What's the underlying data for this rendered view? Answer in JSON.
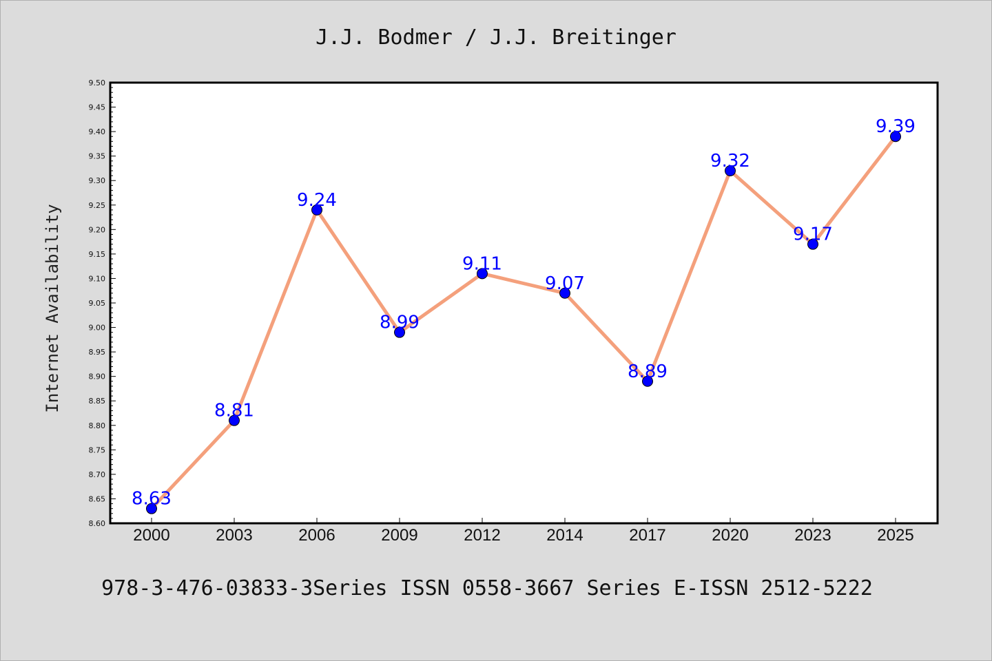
{
  "chart_data": {
    "type": "line",
    "title": "J.J. Bodmer / J.J. Breitinger",
    "footer": "978-3-476-03833-3Series ISSN 0558-3667 Series E-ISSN 2512-5222",
    "ylabel": "Internet Availability",
    "xlabel": "",
    "categories": [
      "2000",
      "2003",
      "2006",
      "2009",
      "2012",
      "2014",
      "2017",
      "2020",
      "2023",
      "2025"
    ],
    "series": [
      {
        "values": [
          8.63,
          8.81,
          9.24,
          8.99,
          9.11,
          9.07,
          8.89,
          9.32,
          9.17,
          9.39
        ]
      }
    ],
    "data_labels": [
      "8.63",
      "8.81",
      "9.24",
      "8.99",
      "9.11",
      "9.07",
      "8.89",
      "9.32",
      "9.17",
      "9.39"
    ],
    "ylim": [
      8.6,
      9.5
    ],
    "yticks": [
      "8.60",
      "8.65",
      "8.70",
      "8.75",
      "8.80",
      "8.85",
      "8.90",
      "8.95",
      "9.00",
      "9.05",
      "9.10",
      "9.15",
      "9.20",
      "9.25",
      "9.30",
      "9.35",
      "9.40",
      "9.45",
      "9.50"
    ],
    "grid": false,
    "legend": "none",
    "colors": {
      "line": "#f4a07c",
      "marker": "#0000ff",
      "marker_edge": "#000000",
      "label": "#0000ff",
      "plot_bg": "#ffffff",
      "page_bg": "#dcdcdc"
    }
  }
}
